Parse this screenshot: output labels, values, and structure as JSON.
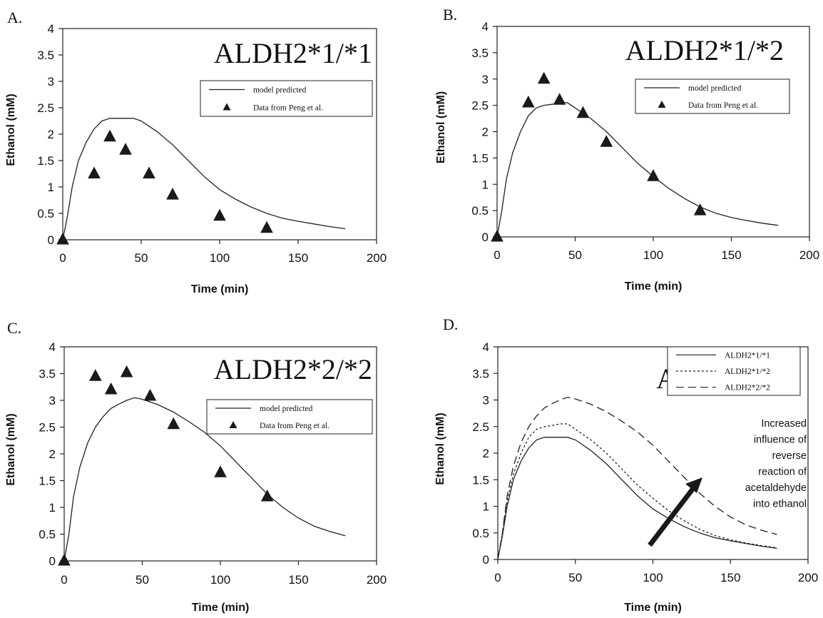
{
  "chart_data": [
    {
      "panel": "A.",
      "type": "line",
      "title": "ALDH2*1/*1",
      "xlabel": "Time (min)",
      "ylabel": "Ethanol (mM)",
      "xlim": [
        0,
        200
      ],
      "ylim": [
        0,
        4
      ],
      "xticks": [
        "0",
        "50",
        "100",
        "150",
        "200"
      ],
      "yticks": [
        "0",
        "0.5",
        "1",
        "1.5",
        "2",
        "2.5",
        "3",
        "3.5",
        "4"
      ],
      "legend_position": "upper-right",
      "series": [
        {
          "name": "model predicted",
          "kind": "line",
          "style": "solid",
          "x": [
            0,
            3,
            6,
            10,
            15,
            20,
            25,
            30,
            35,
            40,
            45,
            50,
            60,
            70,
            80,
            90,
            100,
            110,
            120,
            130,
            140,
            150,
            160,
            170,
            180
          ],
          "y": [
            0,
            0.45,
            1.0,
            1.5,
            1.85,
            2.1,
            2.25,
            2.3,
            2.3,
            2.3,
            2.3,
            2.25,
            2.05,
            1.8,
            1.5,
            1.2,
            0.95,
            0.77,
            0.62,
            0.5,
            0.41,
            0.35,
            0.3,
            0.25,
            0.21
          ]
        },
        {
          "name": "Data from Peng et al.",
          "kind": "scatter",
          "marker": "triangle",
          "x": [
            0,
            20,
            30,
            40,
            55,
            70,
            100,
            130
          ],
          "y": [
            0,
            1.25,
            1.95,
            1.7,
            1.25,
            0.85,
            0.45,
            0.22
          ]
        }
      ]
    },
    {
      "panel": "B.",
      "type": "line",
      "title": "ALDH2*1/*2",
      "xlabel": "Time (min)",
      "ylabel": "Ethanol (mM)",
      "xlim": [
        0,
        200
      ],
      "ylim": [
        0,
        4
      ],
      "xticks": [
        "0",
        "50",
        "100",
        "150",
        "200"
      ],
      "yticks": [
        "0",
        "0.5",
        "1",
        "1.5",
        "2",
        "2.5",
        "3",
        "3.5",
        "4"
      ],
      "legend_position": "upper-right",
      "series": [
        {
          "name": "model predicted",
          "kind": "line",
          "style": "solid",
          "x": [
            0,
            3,
            6,
            10,
            15,
            20,
            25,
            30,
            35,
            40,
            45,
            50,
            60,
            70,
            80,
            90,
            100,
            110,
            120,
            130,
            140,
            150,
            160,
            170,
            180
          ],
          "y": [
            0,
            0.5,
            1.1,
            1.6,
            2.0,
            2.3,
            2.45,
            2.5,
            2.52,
            2.55,
            2.55,
            2.45,
            2.25,
            2.0,
            1.7,
            1.4,
            1.15,
            0.92,
            0.73,
            0.57,
            0.45,
            0.37,
            0.31,
            0.26,
            0.22
          ]
        },
        {
          "name": "Data from Peng et al.",
          "kind": "scatter",
          "marker": "triangle",
          "x": [
            0,
            20,
            30,
            40,
            55,
            70,
            100,
            130
          ],
          "y": [
            0,
            2.55,
            3.0,
            2.6,
            2.35,
            1.8,
            1.15,
            0.5
          ]
        }
      ]
    },
    {
      "panel": "C.",
      "type": "line",
      "title": "ALDH2*2/*2",
      "xlabel": "Time (min)",
      "ylabel": "Ethanol (mM)",
      "xlim": [
        0,
        200
      ],
      "ylim": [
        0,
        4
      ],
      "xticks": [
        "0",
        "50",
        "100",
        "150",
        "200"
      ],
      "yticks": [
        "0",
        "0.5",
        "1",
        "1.5",
        "2",
        "2.5",
        "3",
        "3.5",
        "4"
      ],
      "legend_position": "right",
      "series": [
        {
          "name": "model predicted",
          "kind": "line",
          "style": "solid",
          "x": [
            0,
            3,
            6,
            10,
            15,
            20,
            25,
            30,
            35,
            40,
            45,
            50,
            60,
            70,
            80,
            90,
            100,
            110,
            120,
            130,
            140,
            150,
            160,
            170,
            180
          ],
          "y": [
            0,
            0.5,
            1.2,
            1.75,
            2.2,
            2.5,
            2.7,
            2.85,
            2.93,
            3.0,
            3.05,
            3.02,
            2.92,
            2.78,
            2.6,
            2.4,
            2.15,
            1.85,
            1.55,
            1.25,
            1.0,
            0.8,
            0.65,
            0.55,
            0.47
          ]
        },
        {
          "name": "Data from Peng et al.",
          "kind": "scatter",
          "marker": "triangle",
          "x": [
            0,
            20,
            30,
            40,
            55,
            70,
            100,
            130
          ],
          "y": [
            0,
            3.45,
            3.2,
            3.52,
            3.08,
            2.55,
            1.65,
            1.2
          ]
        }
      ]
    },
    {
      "panel": "D.",
      "type": "line",
      "title": "ALL",
      "xlabel": "Time (min)",
      "ylabel": "Ethanol (mM)",
      "xlim": [
        0,
        200
      ],
      "ylim": [
        0,
        4
      ],
      "xticks": [
        "0",
        "50",
        "100",
        "150",
        "200"
      ],
      "yticks": [
        "0",
        "0.5",
        "1",
        "1.5",
        "2",
        "2.5",
        "3",
        "3.5",
        "4"
      ],
      "legend_position": "upper-right",
      "annotation": [
        "Increased",
        "influence of",
        "reverse",
        "reaction of",
        "acetaldehyde",
        "into ethanol"
      ],
      "series": [
        {
          "name": "ALDH2*1/*1",
          "kind": "line",
          "style": "solid",
          "x": [
            0,
            3,
            6,
            10,
            15,
            20,
            25,
            30,
            35,
            40,
            45,
            50,
            60,
            70,
            80,
            90,
            100,
            110,
            120,
            130,
            140,
            150,
            160,
            170,
            180
          ],
          "y": [
            0,
            0.45,
            1.0,
            1.5,
            1.85,
            2.1,
            2.25,
            2.3,
            2.3,
            2.3,
            2.3,
            2.25,
            2.05,
            1.8,
            1.5,
            1.2,
            0.95,
            0.77,
            0.62,
            0.5,
            0.41,
            0.35,
            0.3,
            0.25,
            0.21
          ]
        },
        {
          "name": "ALDH2*1/*2",
          "kind": "line",
          "style": "dotted",
          "x": [
            0,
            3,
            6,
            10,
            15,
            20,
            25,
            30,
            35,
            40,
            45,
            50,
            60,
            70,
            80,
            90,
            100,
            110,
            120,
            130,
            140,
            150,
            160,
            170,
            180
          ],
          "y": [
            0,
            0.5,
            1.1,
            1.6,
            2.0,
            2.3,
            2.45,
            2.5,
            2.52,
            2.55,
            2.55,
            2.45,
            2.25,
            2.0,
            1.7,
            1.4,
            1.15,
            0.92,
            0.73,
            0.57,
            0.45,
            0.37,
            0.31,
            0.26,
            0.22
          ]
        },
        {
          "name": "ALDH2*2/*2",
          "kind": "line",
          "style": "dashed",
          "x": [
            0,
            3,
            6,
            10,
            15,
            20,
            25,
            30,
            35,
            40,
            45,
            50,
            60,
            70,
            80,
            90,
            100,
            110,
            120,
            130,
            140,
            150,
            160,
            170,
            180
          ],
          "y": [
            0,
            0.5,
            1.2,
            1.75,
            2.2,
            2.5,
            2.7,
            2.85,
            2.93,
            3.0,
            3.05,
            3.02,
            2.92,
            2.78,
            2.6,
            2.4,
            2.15,
            1.85,
            1.55,
            1.25,
            1.0,
            0.8,
            0.65,
            0.55,
            0.47
          ]
        }
      ]
    }
  ]
}
